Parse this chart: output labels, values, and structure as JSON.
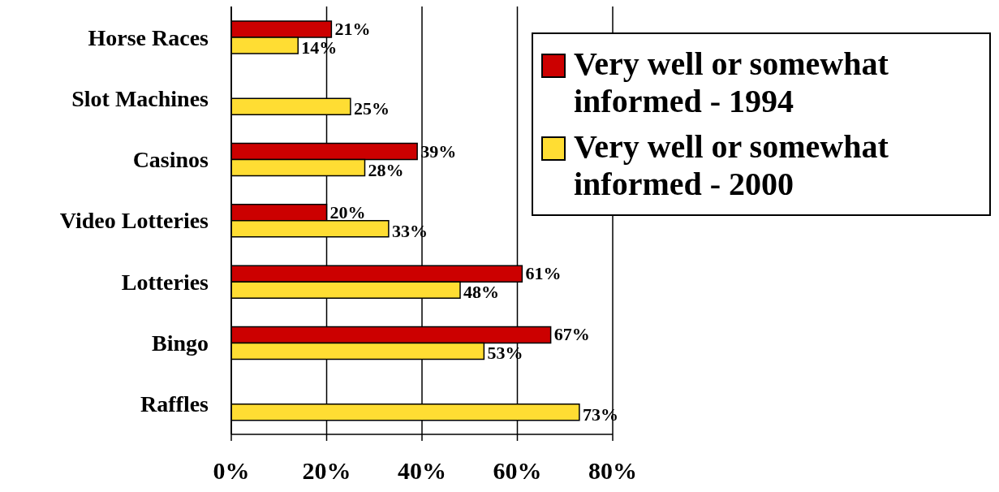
{
  "chart_data": {
    "type": "bar",
    "orientation": "horizontal",
    "categories": [
      "Horse Races",
      "Slot Machines",
      "Casinos",
      "Video Lotteries",
      "Lotteries",
      "Bingo",
      "Raffles"
    ],
    "series": [
      {
        "name": "Very well or somewhat informed - 1994",
        "color": "#cc0000",
        "values": [
          21,
          null,
          39,
          20,
          61,
          67,
          null
        ],
        "value_labels": [
          "21%",
          null,
          "39%",
          "20%",
          "61%",
          "67%",
          null
        ]
      },
      {
        "name": "Very well or somewhat informed - 2000",
        "color": "#ffdd33",
        "values": [
          14,
          25,
          28,
          33,
          48,
          53,
          73
        ],
        "value_labels": [
          "14%",
          "25%",
          "28%",
          "33%",
          "48%",
          "53%",
          "73%"
        ]
      }
    ],
    "xlim": [
      0,
      80
    ],
    "xticks": [
      {
        "value": 0,
        "label": "0%"
      },
      {
        "value": 20,
        "label": "20%"
      },
      {
        "value": 40,
        "label": "40%"
      },
      {
        "value": 60,
        "label": "60%"
      },
      {
        "value": 80,
        "label": "80%"
      }
    ],
    "grid": "x",
    "legend": "top right"
  }
}
